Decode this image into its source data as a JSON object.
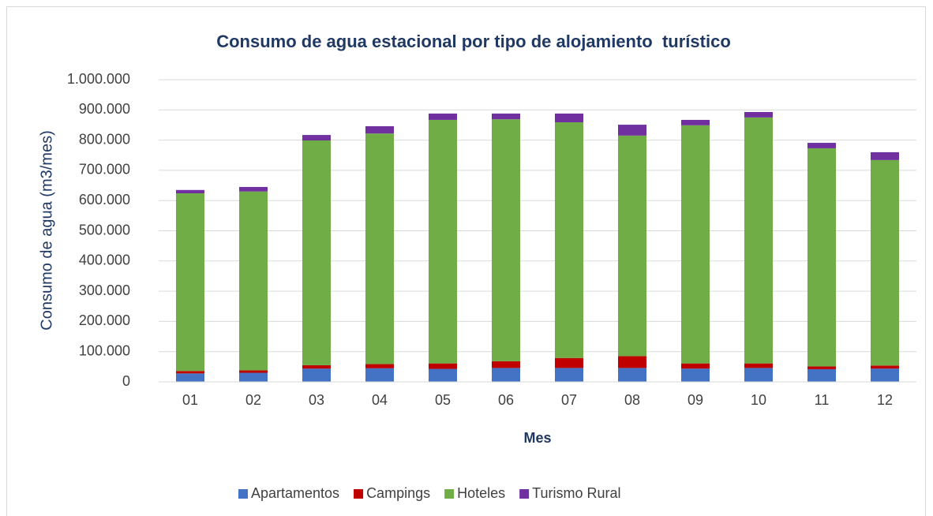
{
  "chart_data": {
    "type": "stacked_bar",
    "title": "Consumo de agua estacional por tipo de alojamiento  turístico",
    "x_label": "Mes",
    "y_label": "Consumo de agua (m3/mes)",
    "categories": [
      "01",
      "02",
      "03",
      "04",
      "05",
      "06",
      "07",
      "08",
      "09",
      "10",
      "11",
      "12"
    ],
    "series": [
      {
        "name": "Apartamentos",
        "color": "#4472c4",
        "values": [
          28000,
          30000,
          44000,
          45000,
          43000,
          46000,
          46000,
          46000,
          44000,
          46000,
          42000,
          44000
        ]
      },
      {
        "name": "Campings",
        "color": "#c00000",
        "values": [
          8000,
          8000,
          11000,
          14000,
          18000,
          22000,
          33000,
          39000,
          17000,
          15000,
          9000,
          10000
        ]
      },
      {
        "name": "Hoteles",
        "color": "#70ad47",
        "values": [
          588000,
          592000,
          744000,
          763000,
          806000,
          801000,
          780000,
          730000,
          788000,
          814000,
          722000,
          680000
        ]
      },
      {
        "name": "Turismo Rural",
        "color": "#7030a0",
        "values": [
          11000,
          15000,
          18000,
          24000,
          21000,
          19000,
          29000,
          36000,
          18000,
          18000,
          18000,
          26000
        ]
      }
    ],
    "ylim": [
      0,
      1000000
    ],
    "yticks": [
      0,
      {
        "value": 100000,
        "label": "100.000"
      },
      {
        "value": 200000,
        "label": "200.000"
      },
      {
        "value": 300000,
        "label": "300.000"
      },
      {
        "value": 400000,
        "label": "400.000"
      },
      {
        "value": 500000,
        "label": "500.000"
      },
      {
        "value": 600000,
        "label": "600.000"
      },
      {
        "value": 700000,
        "label": "700.000"
      },
      {
        "value": 800000,
        "label": "800.000"
      },
      {
        "value": 900000,
        "label": "900.000"
      },
      {
        "value": 1000000,
        "label": "1.000.000"
      }
    ],
    "grid": true,
    "legend": "bottom"
  }
}
